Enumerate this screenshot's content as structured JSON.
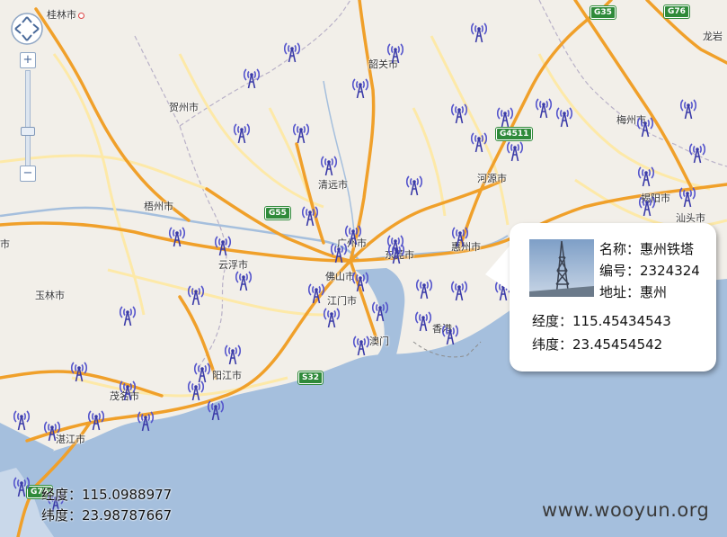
{
  "map": {
    "cities": [
      {
        "id": "guilin",
        "name": "桂林市"
      },
      {
        "id": "shaoguan",
        "name": "韶关市"
      },
      {
        "id": "hezhou",
        "name": "贺州市"
      },
      {
        "id": "meizhou",
        "name": "梅州市"
      },
      {
        "id": "longyan",
        "name": "龙岩"
      },
      {
        "id": "heyuan",
        "name": "河源市"
      },
      {
        "id": "qingyuan",
        "name": "清远市"
      },
      {
        "id": "jieyang",
        "name": "揭阳市"
      },
      {
        "id": "shantou",
        "name": "汕头市"
      },
      {
        "id": "wuzhou",
        "name": "梧州市"
      },
      {
        "id": "guangzhou",
        "name": "广州市"
      },
      {
        "id": "huizhou",
        "name": "惠州市"
      },
      {
        "id": "dongguan",
        "name": "东莞市"
      },
      {
        "id": "yunfu",
        "name": "云浮市"
      },
      {
        "id": "foshan",
        "name": "佛山市"
      },
      {
        "id": "yulin",
        "name": "玉林市"
      },
      {
        "id": "jiangmen",
        "name": "江门市"
      },
      {
        "id": "xianggang",
        "name": "香港"
      },
      {
        "id": "aomen",
        "name": "澳门"
      },
      {
        "id": "yangjiang",
        "name": "阳江市"
      },
      {
        "id": "maoming",
        "name": "茂名市"
      },
      {
        "id": "zhanjiang",
        "name": "湛江市"
      },
      {
        "id": "leftcity",
        "name": "市"
      }
    ],
    "highways": [
      "G35",
      "G76",
      "G4511",
      "G55",
      "S32",
      "G75"
    ]
  },
  "popup": {
    "name_label": "名称：",
    "name_value": "惠州铁塔",
    "code_label": "编号：",
    "code_value": "2324324",
    "addr_label": "地址：",
    "addr_value": "惠州",
    "lng_label": "经度：",
    "lng_value": "115.45434543",
    "lat_label": "纬度：",
    "lat_value": "23.45454542"
  },
  "cursor_coords": {
    "lng_label": "经度：",
    "lng_value": "115.0988977",
    "lat_label": "纬度：",
    "lat_value": "23.98787667"
  },
  "watermark": "www.wooyun.org",
  "colors": {
    "land": "#f2efe9",
    "sea": "#a5bfdd",
    "highway": "#f6b13d",
    "road": "#fde9a8",
    "tower": "#5555cc",
    "shield": "#2f8a3a"
  },
  "icons": {
    "tower": "signal-tower-icon",
    "nav": "pan-control-icon"
  }
}
